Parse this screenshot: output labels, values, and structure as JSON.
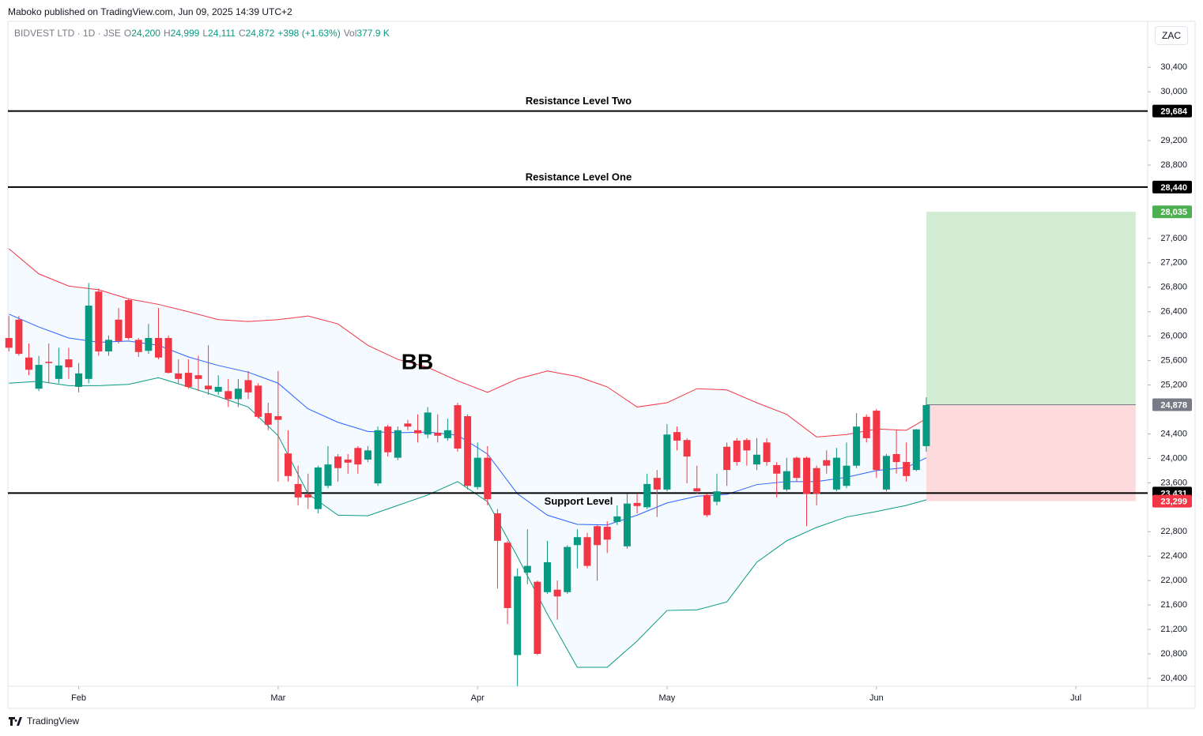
{
  "header": {
    "published": "Maboko published on TradingView.com, Jun 09, 2025 14:39 UTC+2",
    "symbol": "BIDVEST LTD · 1D · JSE",
    "open_label": "O",
    "open": "24,200",
    "high_label": "H",
    "high": "24,999",
    "low_label": "L",
    "low": "24,111",
    "close_label": "C",
    "close": "24,872",
    "change": "+398 (+1.63%)",
    "volume_label": "Vol",
    "volume": "377.9 K",
    "currency": "ZAC"
  },
  "footer": {
    "brand": "TradingView"
  },
  "chart_data": {
    "type": "candlestick",
    "x": [
      0,
      1,
      2,
      3,
      4,
      5,
      6,
      7,
      8,
      9,
      10,
      11,
      12,
      13,
      14,
      15,
      16,
      17,
      18,
      19,
      20,
      21,
      22,
      23,
      24,
      25,
      26,
      27,
      28,
      29,
      30,
      31,
      32,
      33,
      34,
      35,
      36,
      37,
      38,
      39,
      40,
      41,
      42,
      43,
      44,
      45,
      46,
      47,
      48,
      49,
      50,
      51,
      52,
      53,
      54,
      55,
      56,
      57,
      58,
      59,
      60,
      61,
      62,
      63,
      64,
      65,
      66,
      67,
      68,
      69,
      70,
      71,
      72,
      73,
      74,
      75,
      76,
      77,
      78,
      79,
      80,
      81,
      82,
      83,
      84,
      85,
      86,
      87,
      88,
      89,
      90,
      91,
      92
    ],
    "open": [
      25970,
      26270,
      25650,
      25140,
      25580,
      25300,
      25620,
      25170,
      25300,
      26730,
      25750,
      26270,
      26590,
      25940,
      25760,
      25970,
      25970,
      25390,
      25400,
      25360,
      25190,
      25090,
      25100,
      24970,
      25280,
      25190,
      24740,
      24690,
      24080,
      23580,
      23410,
      23170,
      23550,
      24030,
      23980,
      24170,
      23980,
      23590,
      24520,
      24010,
      24570,
      24460,
      24390,
      24420,
      24330,
      24870,
      24690,
      23530,
      24010,
      23100,
      22620,
      20780,
      22130,
      21980,
      21810,
      21850,
      21810,
      22580,
      22710,
      22890,
      22880,
      22960,
      22560,
      23270,
      23200,
      23680,
      23490,
      24430,
      24300,
      23510,
      23400,
      23290,
      24190,
      24290,
      24300,
      23900,
      24260,
      23890,
      23490,
      24010,
      24010,
      23840,
      23970,
      23490,
      23550,
      23880,
      24680,
      24780,
      23490,
      24070,
      23940,
      23810,
      24200
    ],
    "high": [
      26330,
      26330,
      25880,
      25680,
      25880,
      25810,
      25810,
      25560,
      26870,
      26780,
      26010,
      26460,
      26610,
      25970,
      26200,
      26460,
      26010,
      25620,
      25620,
      25680,
      25850,
      25360,
      25300,
      25300,
      25430,
      25230,
      24910,
      25430,
      24460,
      23880,
      23750,
      23880,
      24200,
      24070,
      24070,
      24200,
      24200,
      24520,
      24550,
      24520,
      24630,
      24720,
      24840,
      24720,
      24650,
      24910,
      24720,
      24260,
      24200,
      23170,
      22650,
      22200,
      22840,
      22000,
      22650,
      22000,
      22580,
      22840,
      22780,
      22920,
      22970,
      23230,
      23420,
      23420,
      23750,
      23810,
      24560,
      24520,
      24330,
      23880,
      23420,
      23750,
      24260,
      24330,
      24330,
      24330,
      24330,
      23940,
      24010,
      24030,
      24030,
      23880,
      24130,
      24170,
      24260,
      24740,
      24720,
      24810,
      24070,
      24460,
      24260,
      24480,
      24999
    ],
    "low": [
      25750,
      25680,
      25360,
      25100,
      25230,
      25230,
      25300,
      25080,
      25230,
      25680,
      25680,
      25880,
      25940,
      25660,
      25710,
      25620,
      25390,
      25230,
      25140,
      25100,
      25040,
      25040,
      24840,
      24840,
      24970,
      24650,
      24460,
      23620,
      23620,
      23230,
      23170,
      23100,
      23510,
      23620,
      23750,
      23750,
      23940,
      23550,
      24030,
      23970,
      24460,
      24260,
      24330,
      24260,
      24290,
      24110,
      23490,
      23490,
      23230,
      21870,
      21290,
      20270,
      21940,
      20780,
      21780,
      21360,
      21780,
      22200,
      22200,
      22000,
      22450,
      22910,
      22520,
      23100,
      23170,
      23040,
      23460,
      24130,
      23590,
      23420,
      23040,
      23230,
      23550,
      23880,
      23880,
      23810,
      23880,
      23360,
      23460,
      23620,
      22890,
      23230,
      23750,
      23460,
      23510,
      23840,
      24260,
      23680,
      23460,
      23750,
      23620,
      23790,
      24111
    ],
    "close": [
      25810,
      25710,
      25450,
      25530,
      25560,
      25520,
      25490,
      25390,
      26500,
      25750,
      25940,
      25920,
      25970,
      25740,
      25970,
      25650,
      25400,
      25300,
      25170,
      25300,
      25130,
      25170,
      24970,
      25140,
      25080,
      24680,
      24550,
      24630,
      23710,
      23360,
      23360,
      23850,
      23900,
      23840,
      23930,
      23900,
      24130,
      24460,
      24100,
      24460,
      24520,
      24410,
      24750,
      24370,
      24460,
      24160,
      23550,
      24010,
      23330,
      22650,
      21550,
      22070,
      22240,
      20800,
      22300,
      21740,
      22550,
      22710,
      22240,
      22580,
      22670,
      23050,
      23260,
      23220,
      23580,
      23490,
      24390,
      24290,
      24030,
      23460,
      23070,
      23460,
      23810,
      23940,
      24130,
      24060,
      23940,
      23750,
      23790,
      23680,
      23420,
      23420,
      23880,
      24010,
      23880,
      24520,
      24330,
      23810,
      24040,
      23940,
      23710,
      24474,
      24872
    ],
    "up_color": "#089981",
    "down_color": "#f23645",
    "bands": {
      "annotation": "BB",
      "x": [
        0,
        3,
        6,
        9,
        12,
        15,
        18,
        21,
        24,
        27,
        30,
        33,
        36,
        39,
        42,
        45,
        48,
        51,
        54,
        57,
        60,
        63,
        66,
        69,
        72,
        75,
        78,
        81,
        84,
        87,
        90,
        92
      ],
      "upper": {
        "color": "#f23645",
        "values": [
          27430,
          27020,
          26820,
          26760,
          26610,
          26520,
          26400,
          26270,
          26240,
          26270,
          26330,
          26200,
          25850,
          25620,
          25490,
          25270,
          25080,
          25300,
          25430,
          25340,
          25170,
          24840,
          24910,
          25140,
          25120,
          24910,
          24720,
          24350,
          24390,
          24480,
          24460,
          24650
        ]
      },
      "middle": {
        "color": "#2962ff",
        "values": [
          26360,
          26150,
          25970,
          25900,
          25920,
          25850,
          25660,
          25520,
          25410,
          25230,
          24810,
          24590,
          24440,
          24420,
          24430,
          24380,
          24070,
          23420,
          23070,
          22920,
          22910,
          23070,
          23270,
          23380,
          23410,
          23570,
          23620,
          23620,
          23690,
          23800,
          23850,
          24010
        ]
      },
      "lower": {
        "color": "#089981",
        "values": [
          25230,
          25260,
          25190,
          25190,
          25210,
          25320,
          25170,
          25010,
          24840,
          24370,
          23420,
          23070,
          23060,
          23230,
          23400,
          23620,
          23290,
          22390,
          21450,
          20580,
          20580,
          21010,
          21510,
          21520,
          21650,
          22300,
          22650,
          22870,
          23040,
          23130,
          23230,
          23320
        ]
      },
      "fill": "#2196f3"
    },
    "levels": [
      {
        "name": "Resistance Level Two",
        "value": 29684,
        "value_label": "29,684"
      },
      {
        "name": "Resistance Level One",
        "value": 28440,
        "value_label": "28,440"
      },
      {
        "name": "Support Level",
        "value": 23431,
        "value_label": "23,431"
      }
    ],
    "position": {
      "x": [
        92,
        113
      ],
      "target": 28035,
      "target_label": "28,035",
      "entry": 24878,
      "entry_label": "24,878",
      "stop": 23299,
      "stop_label": "23,299",
      "profit_color": "#4caf50",
      "loss_color": "#f23645"
    },
    "xlim": [
      -0.1,
      114.2
    ],
    "xticks": [
      {
        "value": 7,
        "label": "Feb"
      },
      {
        "value": 27,
        "label": "Mar"
      },
      {
        "value": 47,
        "label": "Apr"
      },
      {
        "value": 66,
        "label": "May"
      },
      {
        "value": 87,
        "label": "Jun"
      },
      {
        "value": 107,
        "label": "Jul"
      }
    ],
    "ylim": [
      20270,
      31140
    ],
    "yticks": [
      {
        "value": 20400,
        "label": "20,400"
      },
      {
        "value": 20800,
        "label": "20,800"
      },
      {
        "value": 21200,
        "label": "21,200"
      },
      {
        "value": 21600,
        "label": "21,600"
      },
      {
        "value": 22000,
        "label": "22,000"
      },
      {
        "value": 22400,
        "label": "22,400"
      },
      {
        "value": 22800,
        "label": "22,800"
      },
      {
        "value": 23600,
        "label": "23,600"
      },
      {
        "value": 24000,
        "label": "24,000"
      },
      {
        "value": 24400,
        "label": "24,400"
      },
      {
        "value": 25200,
        "label": "25,200"
      },
      {
        "value": 25600,
        "label": "25,600"
      },
      {
        "value": 26000,
        "label": "26,000"
      },
      {
        "value": 26400,
        "label": "26,400"
      },
      {
        "value": 26800,
        "label": "26,800"
      },
      {
        "value": 27200,
        "label": "27,200"
      },
      {
        "value": 27600,
        "label": "27,600"
      },
      {
        "value": 28800,
        "label": "28,800"
      },
      {
        "value": 29200,
        "label": "29,200"
      },
      {
        "value": 30000,
        "label": "30,000"
      },
      {
        "value": 30400,
        "label": "30,400"
      }
    ],
    "grid": false
  }
}
